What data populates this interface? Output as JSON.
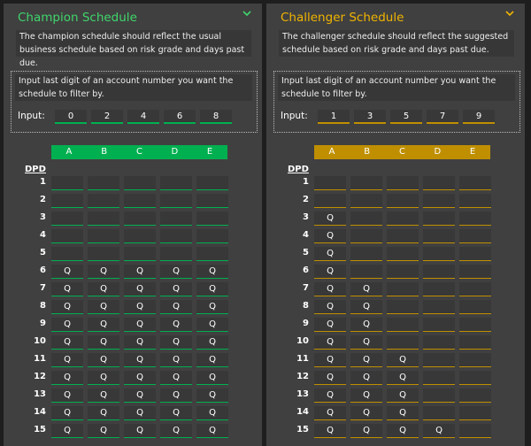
{
  "colors": {
    "champion": "#00b050",
    "champion_title": "#3fd66b",
    "challenger": "#bf8f00",
    "challenger_title": "#f0b400"
  },
  "champion": {
    "title": "Champion Schedule",
    "collapse_icon": "chevron-down-icon",
    "description": "The champion schedule should reflect the usual business schedule based on risk grade and days past due.",
    "input_description": "Input last digit of an account number you want the schedule to filter by.",
    "input_label": "Input:",
    "inputs": [
      "0",
      "2",
      "4",
      "6",
      "8"
    ],
    "columns": [
      "A",
      "B",
      "C",
      "D",
      "E"
    ],
    "row_header": "DPD",
    "rows": [
      {
        "dpd": "1",
        "cells": [
          "",
          "",
          "",
          "",
          ""
        ]
      },
      {
        "dpd": "2",
        "cells": [
          "",
          "",
          "",
          "",
          ""
        ]
      },
      {
        "dpd": "3",
        "cells": [
          "",
          "",
          "",
          "",
          ""
        ]
      },
      {
        "dpd": "4",
        "cells": [
          "",
          "",
          "",
          "",
          ""
        ]
      },
      {
        "dpd": "5",
        "cells": [
          "",
          "",
          "",
          "",
          ""
        ]
      },
      {
        "dpd": "6",
        "cells": [
          "Q",
          "Q",
          "Q",
          "Q",
          "Q"
        ]
      },
      {
        "dpd": "7",
        "cells": [
          "Q",
          "Q",
          "Q",
          "Q",
          "Q"
        ]
      },
      {
        "dpd": "8",
        "cells": [
          "Q",
          "Q",
          "Q",
          "Q",
          "Q"
        ]
      },
      {
        "dpd": "9",
        "cells": [
          "Q",
          "Q",
          "Q",
          "Q",
          "Q"
        ]
      },
      {
        "dpd": "10",
        "cells": [
          "Q",
          "Q",
          "Q",
          "Q",
          "Q"
        ]
      },
      {
        "dpd": "11",
        "cells": [
          "Q",
          "Q",
          "Q",
          "Q",
          "Q"
        ]
      },
      {
        "dpd": "12",
        "cells": [
          "Q",
          "Q",
          "Q",
          "Q",
          "Q"
        ]
      },
      {
        "dpd": "13",
        "cells": [
          "Q",
          "Q",
          "Q",
          "Q",
          "Q"
        ]
      },
      {
        "dpd": "14",
        "cells": [
          "Q",
          "Q",
          "Q",
          "Q",
          "Q"
        ]
      },
      {
        "dpd": "15",
        "cells": [
          "Q",
          "Q",
          "Q",
          "Q",
          "Q"
        ]
      }
    ]
  },
  "challenger": {
    "title": "Challenger Schedule",
    "collapse_icon": "chevron-down-icon",
    "description": "The challenger schedule should reflect the suggested schedule based on risk grade and days past due.",
    "input_description": "Input last digit of an account number you want the schedule to filter by.",
    "input_label": "Input:",
    "inputs": [
      "1",
      "3",
      "5",
      "7",
      "9"
    ],
    "columns": [
      "A",
      "B",
      "C",
      "D",
      "E"
    ],
    "row_header": "DPD",
    "rows": [
      {
        "dpd": "1",
        "cells": [
          "",
          "",
          "",
          "",
          ""
        ]
      },
      {
        "dpd": "2",
        "cells": [
          "",
          "",
          "",
          "",
          ""
        ]
      },
      {
        "dpd": "3",
        "cells": [
          "Q",
          "",
          "",
          "",
          ""
        ]
      },
      {
        "dpd": "4",
        "cells": [
          "Q",
          "",
          "",
          "",
          ""
        ]
      },
      {
        "dpd": "5",
        "cells": [
          "Q",
          "",
          "",
          "",
          ""
        ]
      },
      {
        "dpd": "6",
        "cells": [
          "Q",
          "",
          "",
          "",
          ""
        ]
      },
      {
        "dpd": "7",
        "cells": [
          "Q",
          "Q",
          "",
          "",
          ""
        ]
      },
      {
        "dpd": "8",
        "cells": [
          "Q",
          "Q",
          "",
          "",
          ""
        ]
      },
      {
        "dpd": "9",
        "cells": [
          "Q",
          "Q",
          "",
          "",
          ""
        ]
      },
      {
        "dpd": "10",
        "cells": [
          "Q",
          "Q",
          "",
          "",
          ""
        ]
      },
      {
        "dpd": "11",
        "cells": [
          "Q",
          "Q",
          "Q",
          "",
          ""
        ]
      },
      {
        "dpd": "12",
        "cells": [
          "Q",
          "Q",
          "Q",
          "",
          ""
        ]
      },
      {
        "dpd": "13",
        "cells": [
          "Q",
          "Q",
          "Q",
          "",
          ""
        ]
      },
      {
        "dpd": "14",
        "cells": [
          "Q",
          "Q",
          "Q",
          "",
          ""
        ]
      },
      {
        "dpd": "15",
        "cells": [
          "Q",
          "Q",
          "Q",
          "Q",
          ""
        ]
      }
    ]
  }
}
